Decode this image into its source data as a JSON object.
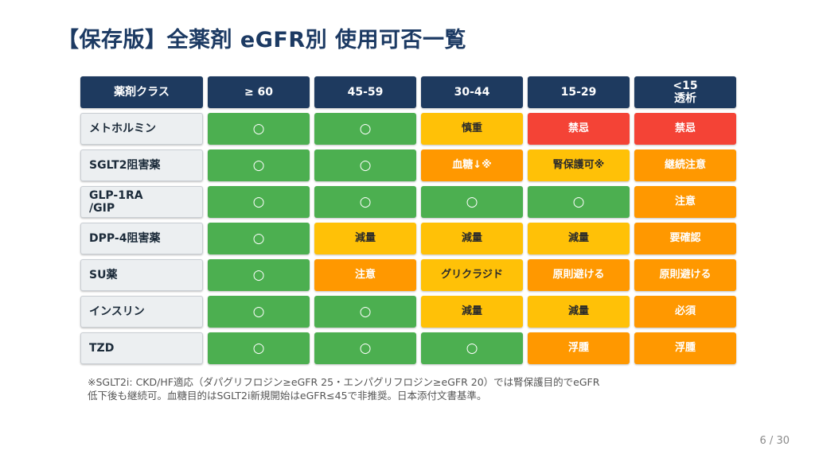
{
  "title": "【保存版】全薬剤 eGFR別 使用可否一覧",
  "table": {
    "headers": [
      "薬剤クラス",
      "≥ 60",
      "45-59",
      "30-44",
      "15-29",
      "<15\n透析"
    ],
    "rows": [
      {
        "label": "メトホルミン",
        "cells": [
          {
            "text": "○",
            "status": "ok"
          },
          {
            "text": "○",
            "status": "ok"
          },
          {
            "text": "慎重",
            "status": "yel"
          },
          {
            "text": "禁忌",
            "status": "red"
          },
          {
            "text": "禁忌",
            "status": "red"
          }
        ]
      },
      {
        "label": "SGLT2阻害薬",
        "cells": [
          {
            "text": "○",
            "status": "ok"
          },
          {
            "text": "○",
            "status": "ok"
          },
          {
            "text": "血糖↓※",
            "status": "ora"
          },
          {
            "text": "腎保護可※",
            "status": "yel"
          },
          {
            "text": "継続注意",
            "status": "ora"
          }
        ]
      },
      {
        "label": "GLP-1RA\n/GIP",
        "cells": [
          {
            "text": "○",
            "status": "ok"
          },
          {
            "text": "○",
            "status": "ok"
          },
          {
            "text": "○",
            "status": "ok"
          },
          {
            "text": "○",
            "status": "ok"
          },
          {
            "text": "注意",
            "status": "ora"
          }
        ]
      },
      {
        "label": "DPP-4阻害薬",
        "cells": [
          {
            "text": "○",
            "status": "ok"
          },
          {
            "text": "減量",
            "status": "yel"
          },
          {
            "text": "減量",
            "status": "yel"
          },
          {
            "text": "減量",
            "status": "yel"
          },
          {
            "text": "要確認",
            "status": "ora"
          }
        ]
      },
      {
        "label": "SU薬",
        "cells": [
          {
            "text": "○",
            "status": "ok"
          },
          {
            "text": "注意",
            "status": "ora"
          },
          {
            "text": "グリクラジド",
            "status": "yel"
          },
          {
            "text": "原則避ける",
            "status": "ora"
          },
          {
            "text": "原則避ける",
            "status": "ora"
          }
        ]
      },
      {
        "label": "インスリン",
        "cells": [
          {
            "text": "○",
            "status": "ok"
          },
          {
            "text": "○",
            "status": "ok"
          },
          {
            "text": "減量",
            "status": "yel"
          },
          {
            "text": "減量",
            "status": "yel"
          },
          {
            "text": "必須",
            "status": "ora"
          }
        ]
      },
      {
        "label": "TZD",
        "cells": [
          {
            "text": "○",
            "status": "ok"
          },
          {
            "text": "○",
            "status": "ok"
          },
          {
            "text": "○",
            "status": "ok"
          },
          {
            "text": "浮腫",
            "status": "ora"
          },
          {
            "text": "浮腫",
            "status": "ora"
          }
        ]
      }
    ]
  },
  "footnote_line1": "※SGLT2i: CKD/HF適応（ダパグリフロジン≥eGFR 25・エンパグリフロジン≥eGFR 20）では腎保護目的でeGFR",
  "footnote_line2": "低下後も継続可。血糖目的はSGLT2i新規開始はeGFR≤45で非推奨。日本添付文書基準。",
  "page_number": "6 / 30",
  "colors": {
    "ok": "#4caf50",
    "yel": "#ffc107",
    "ora": "#ff9800",
    "red": "#f44336",
    "header": "#1e3a5f"
  }
}
